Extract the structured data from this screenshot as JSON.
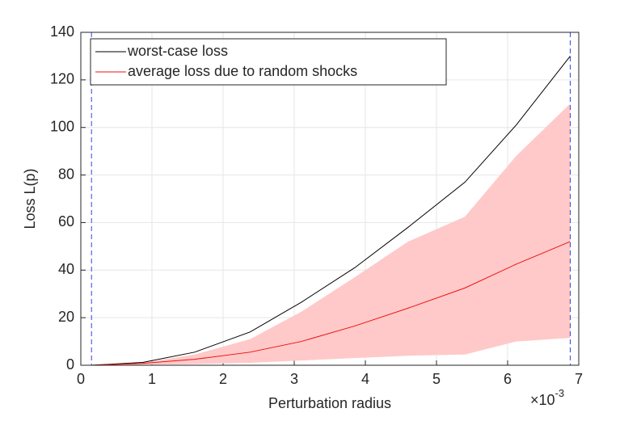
{
  "chart_data": {
    "type": "line",
    "xlabel": "Perturbation radius",
    "ylabel": "Loss L(p)",
    "x_multiplier": {
      "base": "×10",
      "exponent": "-3"
    },
    "x": [
      0.15,
      0.87,
      1.6,
      2.38,
      3.1,
      3.85,
      4.6,
      5.4,
      6.12,
      6.88
    ],
    "series": [
      {
        "name": "worst-case loss",
        "color": "#000000",
        "values": [
          0,
          1.2,
          5.5,
          14,
          26.5,
          41,
          58,
          77,
          101,
          130
        ]
      },
      {
        "name": "average loss due to random shocks",
        "color": "#ee1111",
        "values": [
          0,
          0.8,
          2.5,
          5.5,
          10,
          16.5,
          24,
          32.5,
          42.5,
          52
        ]
      }
    ],
    "band": {
      "color": "#ffc9c9",
      "upper": [
        0,
        1,
        4.5,
        11,
        22.5,
        37,
        52,
        62.5,
        88,
        110
      ],
      "lower": [
        0,
        0.2,
        0.5,
        1,
        2,
        3,
        4,
        4.5,
        10,
        11.5
      ]
    },
    "vlines": {
      "color": "#3344dd",
      "values": [
        0.15,
        6.88
      ]
    },
    "xlim": [
      0,
      7
    ],
    "xticks": [
      0,
      1,
      2,
      3,
      4,
      5,
      6,
      7
    ],
    "ylim": [
      0,
      140
    ],
    "yticks": [
      0,
      20,
      40,
      60,
      80,
      100,
      120,
      140
    ],
    "grid": true,
    "legend": "upper-left"
  }
}
